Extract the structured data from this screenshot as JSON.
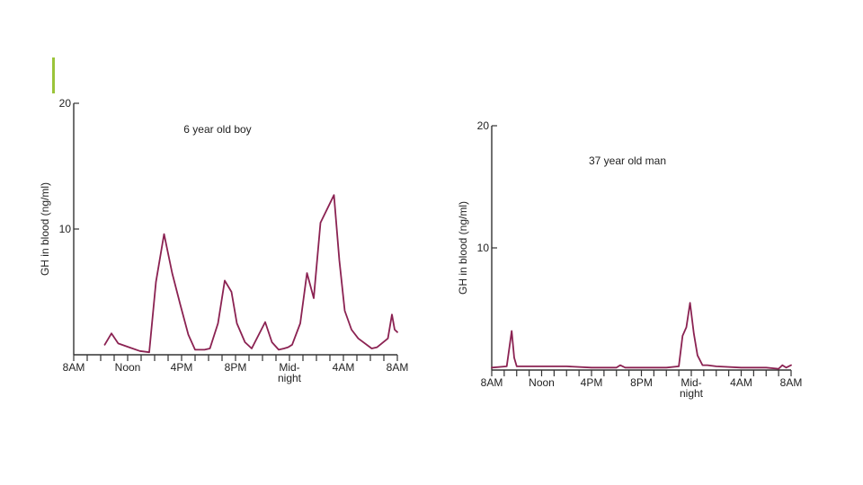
{
  "slide": {
    "accent_color": "#9bc43a"
  },
  "series_color": "#8b2252",
  "chart_data": [
    {
      "type": "line",
      "title": "6 year old boy",
      "ylabel": "GH in blood (ng/ml)",
      "xlabel": "",
      "ylim": [
        0,
        20
      ],
      "y_ticks": [
        {
          "value": 20,
          "label": "20"
        },
        {
          "value": 10,
          "label": "10"
        }
      ],
      "x_range": [
        0,
        24
      ],
      "x_tick_count": 25,
      "x_tick_labels": [
        {
          "hour": 0,
          "lines": [
            "8AM"
          ]
        },
        {
          "hour": 4,
          "lines": [
            "Noon"
          ]
        },
        {
          "hour": 8,
          "lines": [
            "4PM"
          ]
        },
        {
          "hour": 12,
          "lines": [
            "8PM"
          ]
        },
        {
          "hour": 16,
          "lines": [
            "Mid-",
            "night"
          ]
        },
        {
          "hour": 20,
          "lines": [
            "4AM"
          ]
        },
        {
          "hour": 24,
          "lines": [
            "8AM"
          ]
        }
      ],
      "grid": false,
      "series": [
        {
          "x": [
            2.3,
            2.8,
            3.3,
            4.1,
            4.9,
            5.6,
            6.1,
            6.7,
            7.3,
            7.9,
            8.5,
            9.0,
            9.3,
            9.7,
            10.1,
            10.7,
            11.2,
            11.7,
            12.1,
            12.7,
            13.2,
            14.2,
            14.7,
            15.2,
            15.6,
            15.9,
            16.2,
            16.8,
            17.3,
            17.8,
            18.3,
            19.3,
            19.7,
            20.1,
            20.6,
            21.1,
            22.1,
            22.5,
            23.3,
            23.6,
            23.8,
            24.0
          ],
          "y": [
            0.8,
            1.7,
            0.9,
            0.6,
            0.3,
            0.2,
            5.8,
            9.6,
            6.5,
            4.0,
            1.6,
            0.4,
            0.4,
            0.4,
            0.5,
            2.5,
            5.9,
            5.0,
            2.5,
            1.0,
            0.5,
            2.6,
            1.0,
            0.4,
            0.5,
            0.6,
            0.8,
            2.5,
            6.5,
            4.5,
            10.5,
            12.7,
            7.5,
            3.5,
            2.0,
            1.3,
            0.5,
            0.6,
            1.3,
            3.2,
            2.0,
            1.8
          ]
        }
      ]
    },
    {
      "type": "line",
      "title": "37 year old man",
      "ylabel": "GH in blood (ng/ml)",
      "xlabel": "",
      "ylim": [
        0,
        20
      ],
      "y_ticks": [
        {
          "value": 20,
          "label": "20"
        },
        {
          "value": 10,
          "label": "10"
        }
      ],
      "x_range": [
        0,
        24
      ],
      "x_tick_count": 25,
      "x_tick_labels": [
        {
          "hour": 0,
          "lines": [
            "8AM"
          ]
        },
        {
          "hour": 4,
          "lines": [
            "Noon"
          ]
        },
        {
          "hour": 8,
          "lines": [
            "4PM"
          ]
        },
        {
          "hour": 12,
          "lines": [
            "8PM"
          ]
        },
        {
          "hour": 16,
          "lines": [
            "Mid-",
            "night"
          ]
        },
        {
          "hour": 20,
          "lines": [
            "4AM"
          ]
        },
        {
          "hour": 24,
          "lines": [
            "8AM"
          ]
        }
      ],
      "grid": false,
      "series": [
        {
          "x": [
            0.0,
            1.2,
            1.6,
            1.8,
            2.0,
            2.3,
            4.0,
            6.0,
            8.0,
            10.0,
            10.3,
            10.7,
            12.0,
            14.0,
            15.0,
            15.3,
            15.6,
            15.9,
            16.2,
            16.5,
            16.9,
            17.3,
            18.0,
            20.0,
            22.0,
            23.0,
            23.3,
            23.6,
            24.0
          ],
          "y": [
            0.2,
            0.3,
            3.2,
            1.0,
            0.3,
            0.3,
            0.3,
            0.3,
            0.2,
            0.2,
            0.4,
            0.2,
            0.2,
            0.2,
            0.3,
            2.8,
            3.5,
            5.5,
            3.0,
            1.2,
            0.4,
            0.4,
            0.3,
            0.2,
            0.2,
            0.1,
            0.4,
            0.2,
            0.4
          ]
        }
      ]
    }
  ]
}
